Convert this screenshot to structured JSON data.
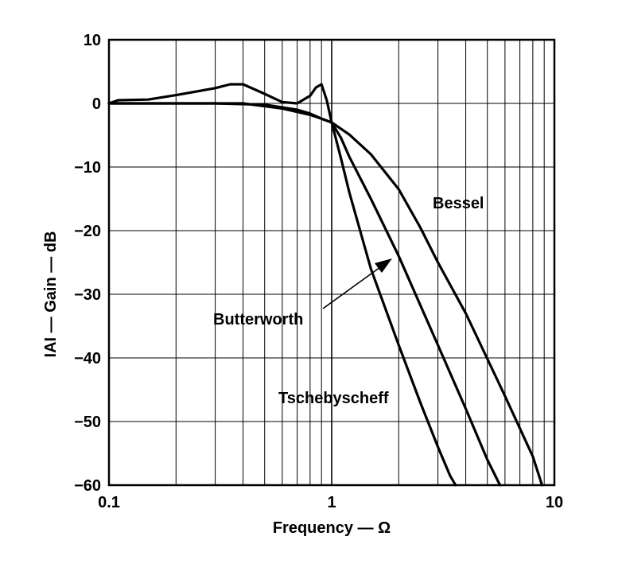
{
  "chart_data": {
    "type": "line",
    "xlabel": "Frequency — Ω",
    "ylabel": "IAI — Gain — dB",
    "xscale": "log",
    "xlim": [
      0.1,
      10
    ],
    "ylim": [
      -60,
      10
    ],
    "grid": true,
    "x_tick_labels": [
      "0.1",
      "1",
      "10"
    ],
    "y_tick_labels": [
      "10",
      "0",
      "−10",
      "−20",
      "−30",
      "−40",
      "−50",
      "−60"
    ],
    "annotations": [
      "Bessel",
      "Butterworth",
      "Tschebyscheff"
    ],
    "series": [
      {
        "name": "Bessel",
        "x": [
          0.1,
          0.2,
          0.4,
          0.6,
          0.8,
          0.9,
          1.0,
          1.2,
          1.5,
          2.0,
          2.5,
          3.0,
          4.0,
          6.0,
          8.0,
          8.8
        ],
        "y": [
          0,
          0,
          0,
          -0.8,
          -1.8,
          -2.4,
          -3.0,
          -4.9,
          -8.0,
          -13.5,
          -19.5,
          -25.0,
          -33.0,
          -46.0,
          -55.5,
          -60.0
        ]
      },
      {
        "name": "Butterworth",
        "x": [
          0.1,
          0.3,
          0.5,
          0.7,
          0.8,
          0.9,
          1.0,
          1.1,
          1.2,
          1.5,
          2.0,
          3.0,
          4.0,
          5.0,
          5.7
        ],
        "y": [
          0,
          0,
          -0.2,
          -1.0,
          -1.6,
          -2.4,
          -3.0,
          -5.4,
          -8.4,
          -15.0,
          -24.0,
          -38.0,
          -48.0,
          -56.0,
          -60.0
        ]
      },
      {
        "name": "Tschebyscheff",
        "x": [
          0.1,
          0.11,
          0.15,
          0.2,
          0.3,
          0.35,
          0.4,
          0.5,
          0.6,
          0.7,
          0.8,
          0.85,
          0.9,
          0.95,
          1.0,
          1.1,
          1.2,
          1.5,
          2.0,
          2.5,
          3.0,
          3.4,
          3.6
        ],
        "y": [
          0,
          0.5,
          0.6,
          1.3,
          2.4,
          3.0,
          3.0,
          1.5,
          0.2,
          0,
          1.2,
          2.5,
          3.0,
          0.5,
          -3.0,
          -8.6,
          -14.0,
          -26.0,
          -38.0,
          -47.0,
          -54.0,
          -58.5,
          -60.0
        ]
      }
    ]
  }
}
